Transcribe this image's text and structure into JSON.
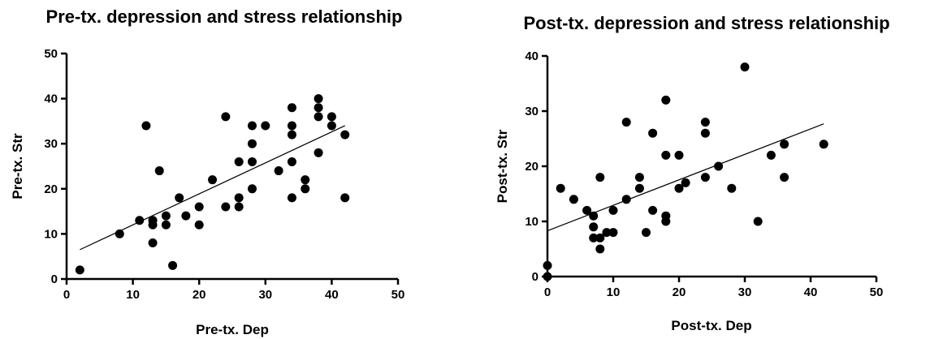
{
  "chart_data": [
    {
      "type": "scatter",
      "title": "Pre-tx. depression and stress relationship",
      "xlabel": "Pre-tx. Dep",
      "ylabel": "Pre-tx. Str",
      "xlim": [
        0,
        50
      ],
      "ylim": [
        0,
        50
      ],
      "xticks": [
        0,
        10,
        20,
        30,
        40,
        50
      ],
      "yticks": [
        0,
        10,
        20,
        30,
        40,
        50
      ],
      "grid": false,
      "points": [
        [
          2,
          2
        ],
        [
          8,
          10
        ],
        [
          11,
          13
        ],
        [
          12,
          34
        ],
        [
          13,
          13
        ],
        [
          13,
          12
        ],
        [
          13,
          8
        ],
        [
          14,
          24
        ],
        [
          15,
          14
        ],
        [
          15,
          12
        ],
        [
          16,
          3
        ],
        [
          17,
          18
        ],
        [
          18,
          14
        ],
        [
          20,
          16
        ],
        [
          20,
          12
        ],
        [
          22,
          22
        ],
        [
          24,
          36
        ],
        [
          24,
          16
        ],
        [
          26,
          26
        ],
        [
          26,
          18
        ],
        [
          26,
          16
        ],
        [
          28,
          34
        ],
        [
          28,
          30
        ],
        [
          28,
          26
        ],
        [
          28,
          20
        ],
        [
          30,
          34
        ],
        [
          32,
          24
        ],
        [
          34,
          38
        ],
        [
          34,
          34
        ],
        [
          34,
          32
        ],
        [
          34,
          26
        ],
        [
          34,
          18
        ],
        [
          36,
          22
        ],
        [
          36,
          20
        ],
        [
          38,
          40
        ],
        [
          38,
          38
        ],
        [
          38,
          36
        ],
        [
          38,
          28
        ],
        [
          40,
          36
        ],
        [
          40,
          34
        ],
        [
          42,
          32
        ],
        [
          42,
          18
        ]
      ],
      "trendline": [
        [
          2,
          6.5
        ],
        [
          42,
          34
        ]
      ]
    },
    {
      "type": "scatter",
      "title": "Post-tx. depression and stress relationship",
      "xlabel": "Post-tx. Dep",
      "ylabel": "Post-tx. Str",
      "xlim": [
        0,
        50
      ],
      "ylim": [
        0,
        40
      ],
      "xticks": [
        0,
        10,
        20,
        30,
        40,
        50
      ],
      "yticks": [
        0,
        10,
        20,
        30,
        40
      ],
      "grid": false,
      "points": [
        [
          0,
          2
        ],
        [
          0,
          0
        ],
        [
          2,
          16
        ],
        [
          4,
          14
        ],
        [
          6,
          12
        ],
        [
          7,
          11
        ],
        [
          7,
          9
        ],
        [
          7,
          7
        ],
        [
          8,
          18
        ],
        [
          8,
          7
        ],
        [
          8,
          5
        ],
        [
          9,
          8
        ],
        [
          10,
          12
        ],
        [
          10,
          8
        ],
        [
          12,
          28
        ],
        [
          12,
          14
        ],
        [
          14,
          18
        ],
        [
          14,
          16
        ],
        [
          15,
          8
        ],
        [
          16,
          26
        ],
        [
          16,
          12
        ],
        [
          18,
          32
        ],
        [
          18,
          22
        ],
        [
          18,
          11
        ],
        [
          18,
          10
        ],
        [
          20,
          22
        ],
        [
          20,
          16
        ],
        [
          21,
          17
        ],
        [
          24,
          28
        ],
        [
          24,
          26
        ],
        [
          24,
          18
        ],
        [
          26,
          20
        ],
        [
          28,
          16
        ],
        [
          30,
          38
        ],
        [
          32,
          10
        ],
        [
          34,
          22
        ],
        [
          36,
          24
        ],
        [
          36,
          18
        ],
        [
          42,
          24
        ]
      ],
      "trendline": [
        [
          0,
          8.3
        ],
        [
          42,
          27.7
        ]
      ]
    }
  ]
}
